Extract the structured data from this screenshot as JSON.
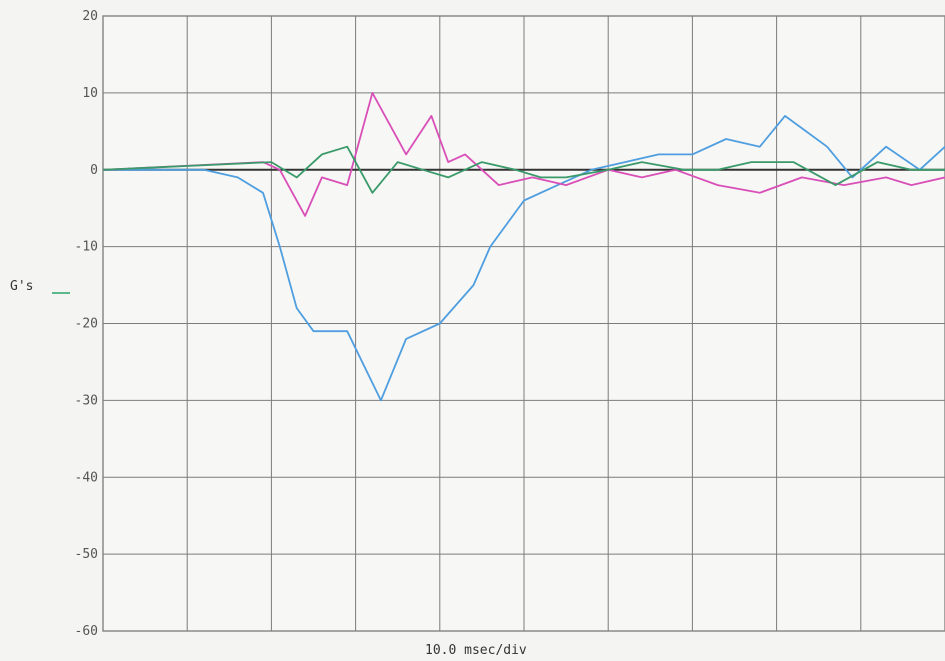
{
  "chart_data": {
    "type": "line",
    "ylabel": "G's",
    "xlabel": "10.0 msec/div",
    "ylim": [
      -60,
      20
    ],
    "y_ticks": [
      "20",
      "10",
      "0",
      "-10",
      "-20",
      "-30",
      "-40",
      "-50",
      "-60"
    ],
    "x_unit": "division",
    "x_divisions": 10,
    "grid": true,
    "series": [
      {
        "color": "#4f9ee0",
        "x": [
          0,
          1.2,
          1.6,
          1.9,
          2.1,
          2.3,
          2.5,
          2.9,
          3.3,
          3.6,
          4.0,
          4.4,
          4.6,
          5.0,
          5.4,
          5.8,
          6.2,
          6.6,
          7.0,
          7.4,
          7.8,
          8.1,
          8.6,
          8.9,
          9.3,
          9.7,
          10
        ],
        "y": [
          0,
          0,
          -1,
          -3,
          -10,
          -18,
          -21,
          -21,
          -30,
          -22,
          -20,
          -15,
          -10,
          -4,
          -2,
          0,
          1,
          2,
          2,
          4,
          3,
          7,
          3,
          -1,
          3,
          0,
          3
        ]
      },
      {
        "color": "#d94fb8",
        "x": [
          0,
          1.9,
          2.1,
          2.4,
          2.6,
          2.9,
          3.2,
          3.6,
          3.9,
          4.1,
          4.3,
          4.7,
          5.1,
          5.5,
          6.0,
          6.4,
          6.8,
          7.3,
          7.8,
          8.3,
          8.8,
          9.3,
          9.6,
          10
        ],
        "y": [
          0,
          1,
          0,
          -6,
          -1,
          -2,
          10,
          2,
          7,
          1,
          2,
          -2,
          -1,
          -2,
          0,
          -1,
          0,
          -2,
          -3,
          -1,
          -2,
          -1,
          -2,
          -1
        ]
      },
      {
        "color": "#3a9a6a",
        "x": [
          0,
          2.0,
          2.3,
          2.6,
          2.9,
          3.2,
          3.5,
          3.8,
          4.1,
          4.5,
          4.9,
          5.2,
          5.5,
          6.0,
          6.4,
          6.9,
          7.3,
          7.7,
          8.2,
          8.7,
          9.2,
          9.6,
          10
        ],
        "y": [
          0,
          1,
          -1,
          2,
          3,
          -3,
          1,
          0,
          -1,
          1,
          0,
          -1,
          -1,
          0,
          1,
          0,
          0,
          1,
          1,
          -2,
          1,
          0,
          0
        ]
      }
    ]
  }
}
